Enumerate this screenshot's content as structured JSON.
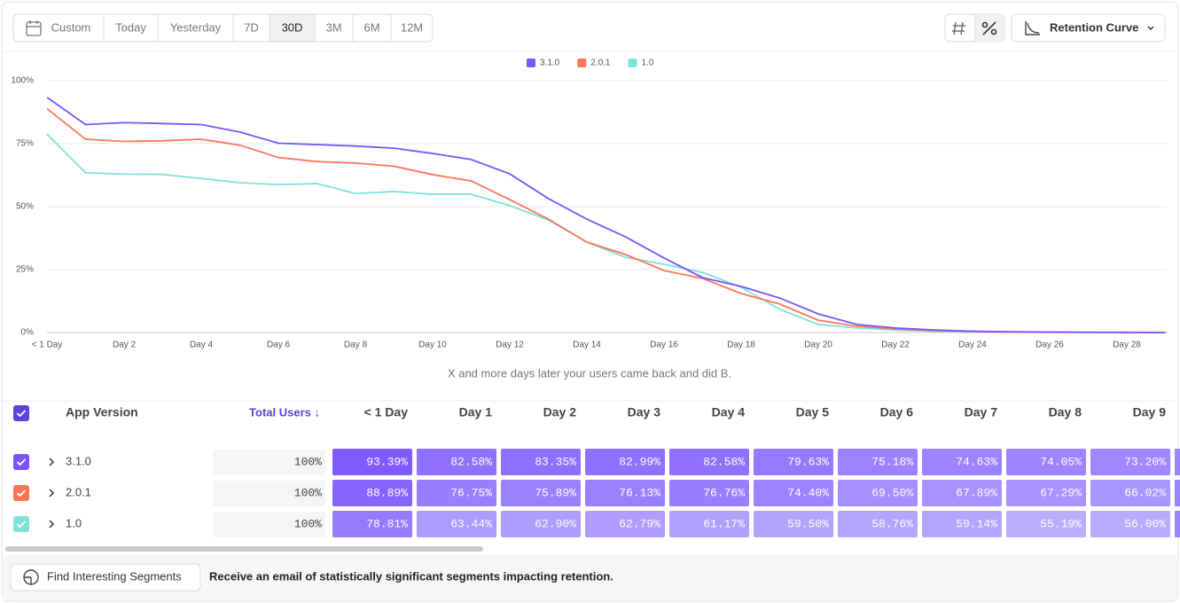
{
  "toolbar": {
    "date_ranges": [
      "Custom",
      "Today",
      "Yesterday",
      "7D",
      "30D",
      "3M",
      "6M",
      "12M"
    ],
    "selected": "30D",
    "view_button": "Retention Curve"
  },
  "chart_data": {
    "type": "line",
    "categories": [
      "< 1 Day",
      null,
      "Day 2",
      null,
      "Day 4",
      null,
      "Day 6",
      null,
      "Day 8",
      null,
      "Day 10",
      null,
      "Day 12",
      null,
      "Day 14",
      null,
      "Day 16",
      null,
      "Day 18",
      null,
      "Day 20",
      null,
      "Day 22",
      null,
      "Day 24",
      null,
      "Day 26",
      null,
      "Day 28",
      null
    ],
    "series": [
      {
        "name": "3.1.0",
        "color": "#7856ff",
        "values": [
          93.39,
          82.58,
          83.35,
          82.99,
          82.58,
          79.63,
          75.18,
          74.63,
          74.05,
          73.2,
          71.1,
          68.7,
          63,
          53.2,
          45,
          38,
          29.6,
          21.8,
          18.3,
          13.7,
          7.4,
          3.2,
          1.8,
          1,
          0.5,
          0.3,
          0.2,
          0.1,
          0.1,
          0
        ]
      },
      {
        "name": "2.0.1",
        "color": "#ff7557",
        "values": [
          88.89,
          76.75,
          75.89,
          76.13,
          76.76,
          74.4,
          69.5,
          67.89,
          67.29,
          66.02,
          62.7,
          60.2,
          52.8,
          45,
          35.9,
          31,
          24.6,
          21.5,
          15.5,
          11.3,
          4.9,
          2.5,
          1.4,
          0.8,
          0.4,
          0.2,
          0.1,
          0.1,
          0,
          0
        ]
      },
      {
        "name": "1.0",
        "color": "#80e1d9",
        "values": [
          78.81,
          63.44,
          62.9,
          62.79,
          61.17,
          59.5,
          58.76,
          59.14,
          55.19,
          56.0,
          54.9,
          54.9,
          50.4,
          44.7,
          35.9,
          29.9,
          27.1,
          23.9,
          18,
          9.2,
          3.2,
          1.8,
          1,
          0.5,
          0.3,
          0.2,
          0.1,
          0.1,
          0,
          0
        ]
      }
    ],
    "ylim": [
      0,
      100
    ],
    "yticks": [
      {
        "value": 0,
        "label": "0%"
      },
      {
        "value": 25,
        "label": "25%"
      },
      {
        "value": 50,
        "label": "50%"
      },
      {
        "value": 75,
        "label": "75%"
      },
      {
        "value": 100,
        "label": "100%"
      }
    ],
    "grid": true,
    "caption": "X and more days later your users came back and did B."
  },
  "table": {
    "columns": [
      "App Version",
      "Total Users ↓",
      "< 1 Day",
      "Day 1",
      "Day 2",
      "Day 3",
      "Day 4",
      "Day 5",
      "Day 6",
      "Day 7",
      "Day 8",
      "Day 9"
    ],
    "rows": [
      {
        "name": "3.1.0",
        "total": "100%",
        "cells": [
          "93.39%",
          "82.58%",
          "83.35%",
          "82.99%",
          "82.58%",
          "79.63%",
          "75.18%",
          "74.63%",
          "74.05%",
          "73.20%"
        ]
      },
      {
        "name": "2.0.1",
        "total": "100%",
        "cells": [
          "88.89%",
          "76.75%",
          "75.89%",
          "76.13%",
          "76.76%",
          "74.40%",
          "69.50%",
          "67.89%",
          "67.29%",
          "66.02%"
        ]
      },
      {
        "name": "1.0",
        "total": "100%",
        "cells": [
          "78.81%",
          "63.44%",
          "62.90%",
          "62.79%",
          "61.17%",
          "59.50%",
          "58.76%",
          "59.14%",
          "55.19%",
          "56.00%"
        ]
      }
    ]
  },
  "footer": {
    "button": "Find Interesting Segments",
    "text": "Receive an email of statistically significant segments impacting retention."
  }
}
